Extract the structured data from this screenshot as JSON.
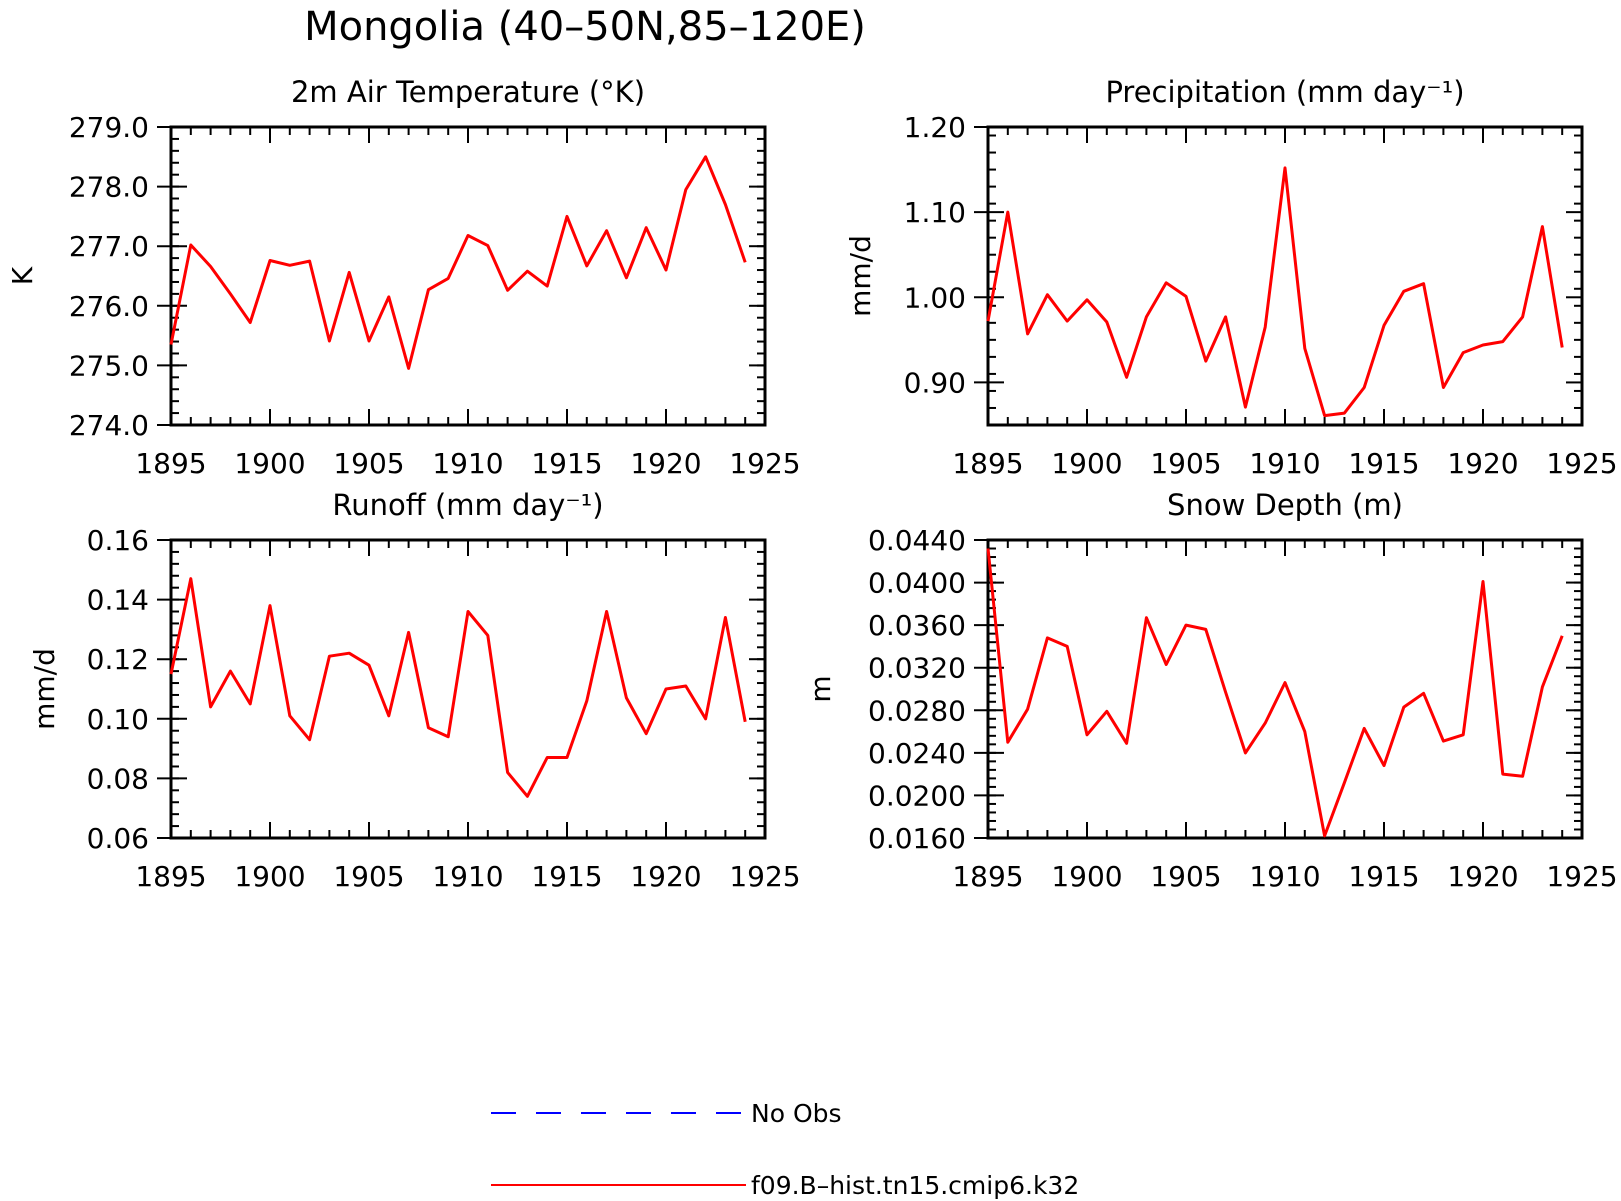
{
  "title": "Mongolia (40–50N,85–120E)",
  "colors": {
    "model": "#ff0000",
    "obs": "#0000ff"
  },
  "legend": {
    "position": "bottom",
    "items": [
      {
        "label": "No Obs",
        "color": "#0000ff",
        "style": "dashed"
      },
      {
        "label": "f09.B–hist.tn15.cmip6.k32",
        "color": "#ff0000",
        "style": "solid"
      }
    ]
  },
  "chart_data": [
    {
      "type": "line",
      "title": "2m Air Temperature (°K)",
      "ylabel": "K",
      "xlim": [
        1895,
        1925
      ],
      "ylim": [
        274.0,
        279.0
      ],
      "xticks": [
        "1895",
        "1900",
        "1905",
        "1910",
        "1915",
        "1920",
        "1925"
      ],
      "yticks": [
        "274.0",
        "275.0",
        "276.0",
        "277.0",
        "278.0",
        "279.0"
      ],
      "ytick_values": [
        274.0,
        275.0,
        276.0,
        277.0,
        278.0,
        279.0
      ],
      "x": [
        1895,
        1896,
        1897,
        1898,
        1899,
        1900,
        1901,
        1902,
        1903,
        1904,
        1905,
        1906,
        1907,
        1908,
        1909,
        1910,
        1911,
        1912,
        1913,
        1914,
        1915,
        1916,
        1917,
        1918,
        1919,
        1920,
        1921,
        1922,
        1923,
        1924
      ],
      "series": [
        {
          "name": "f09.B–hist.tn15.cmip6.k32",
          "values": [
            275.35,
            277.02,
            276.66,
            276.2,
            275.72,
            276.76,
            276.68,
            276.75,
            275.41,
            276.56,
            275.41,
            276.15,
            274.95,
            276.27,
            276.46,
            277.18,
            277.01,
            276.26,
            276.58,
            276.33,
            277.5,
            276.67,
            277.26,
            276.47,
            277.31,
            276.6,
            277.95,
            278.5,
            277.7,
            276.73
          ]
        }
      ]
    },
    {
      "type": "line",
      "title": "Precipitation (mm day⁻¹)",
      "ylabel": "mm/d",
      "xlim": [
        1895,
        1925
      ],
      "ylim": [
        0.85,
        1.2
      ],
      "xticks": [
        "1895",
        "1900",
        "1905",
        "1910",
        "1915",
        "1920",
        "1925"
      ],
      "yticks": [
        "0.90",
        "1.00",
        "1.10",
        "1.20"
      ],
      "ytick_values": [
        0.9,
        1.0,
        1.1,
        1.2
      ],
      "x": [
        1895,
        1896,
        1897,
        1898,
        1899,
        1900,
        1901,
        1902,
        1903,
        1904,
        1905,
        1906,
        1907,
        1908,
        1909,
        1910,
        1911,
        1912,
        1913,
        1914,
        1915,
        1916,
        1917,
        1918,
        1919,
        1920,
        1921,
        1922,
        1923,
        1924
      ],
      "series": [
        {
          "name": "f09.B–hist.tn15.cmip6.k32",
          "values": [
            0.972,
            1.1,
            0.957,
            1.003,
            0.972,
            0.997,
            0.971,
            0.906,
            0.977,
            1.017,
            1.001,
            0.925,
            0.977,
            0.871,
            0.965,
            1.152,
            0.94,
            0.861,
            0.864,
            0.894,
            0.967,
            1.007,
            1.016,
            0.894,
            0.935,
            0.944,
            0.948,
            0.977,
            1.083,
            0.941
          ]
        }
      ]
    },
    {
      "type": "line",
      "title": "Runoff (mm day⁻¹)",
      "ylabel": "mm/d",
      "xlim": [
        1895,
        1925
      ],
      "ylim": [
        0.06,
        0.16
      ],
      "xticks": [
        "1895",
        "1900",
        "1905",
        "1910",
        "1915",
        "1920",
        "1925"
      ],
      "yticks": [
        "0.06",
        "0.08",
        "0.10",
        "0.12",
        "0.14",
        "0.16"
      ],
      "ytick_values": [
        0.06,
        0.08,
        0.1,
        0.12,
        0.14,
        0.16
      ],
      "x": [
        1895,
        1896,
        1897,
        1898,
        1899,
        1900,
        1901,
        1902,
        1903,
        1904,
        1905,
        1906,
        1907,
        1908,
        1909,
        1910,
        1911,
        1912,
        1913,
        1914,
        1915,
        1916,
        1917,
        1918,
        1919,
        1920,
        1921,
        1922,
        1923,
        1924
      ],
      "series": [
        {
          "name": "f09.B–hist.tn15.cmip6.k32",
          "values": [
            0.115,
            0.147,
            0.104,
            0.116,
            0.105,
            0.138,
            0.101,
            0.093,
            0.121,
            0.122,
            0.118,
            0.101,
            0.129,
            0.097,
            0.094,
            0.136,
            0.128,
            0.082,
            0.074,
            0.087,
            0.087,
            0.106,
            0.136,
            0.107,
            0.095,
            0.11,
            0.111,
            0.1,
            0.134,
            0.099
          ]
        }
      ]
    },
    {
      "type": "line",
      "title": "Snow Depth (m)",
      "ylabel": "m",
      "xlim": [
        1895,
        1925
      ],
      "ylim": [
        0.016,
        0.044
      ],
      "xticks": [
        "1895",
        "1900",
        "1905",
        "1910",
        "1915",
        "1920",
        "1925"
      ],
      "yticks": [
        "0.0160",
        "0.0200",
        "0.0240",
        "0.0280",
        "0.0320",
        "0.0360",
        "0.0400",
        "0.0440"
      ],
      "ytick_values": [
        0.016,
        0.02,
        0.024,
        0.028,
        0.032,
        0.036,
        0.04,
        0.044
      ],
      "x": [
        1895,
        1896,
        1897,
        1898,
        1899,
        1900,
        1901,
        1902,
        1903,
        1904,
        1905,
        1906,
        1907,
        1908,
        1909,
        1910,
        1911,
        1912,
        1913,
        1914,
        1915,
        1916,
        1917,
        1918,
        1919,
        1920,
        1921,
        1922,
        1923,
        1924
      ],
      "series": [
        {
          "name": "f09.B–hist.tn15.cmip6.k32",
          "values": [
            0.0432,
            0.025,
            0.0281,
            0.0348,
            0.034,
            0.0257,
            0.0279,
            0.0249,
            0.0367,
            0.0323,
            0.036,
            0.0356,
            0.0297,
            0.024,
            0.0268,
            0.0306,
            0.026,
            0.0162,
            0.0212,
            0.0263,
            0.0228,
            0.0283,
            0.0296,
            0.0251,
            0.0257,
            0.0401,
            0.022,
            0.0218,
            0.0302,
            0.035
          ]
        }
      ]
    }
  ]
}
